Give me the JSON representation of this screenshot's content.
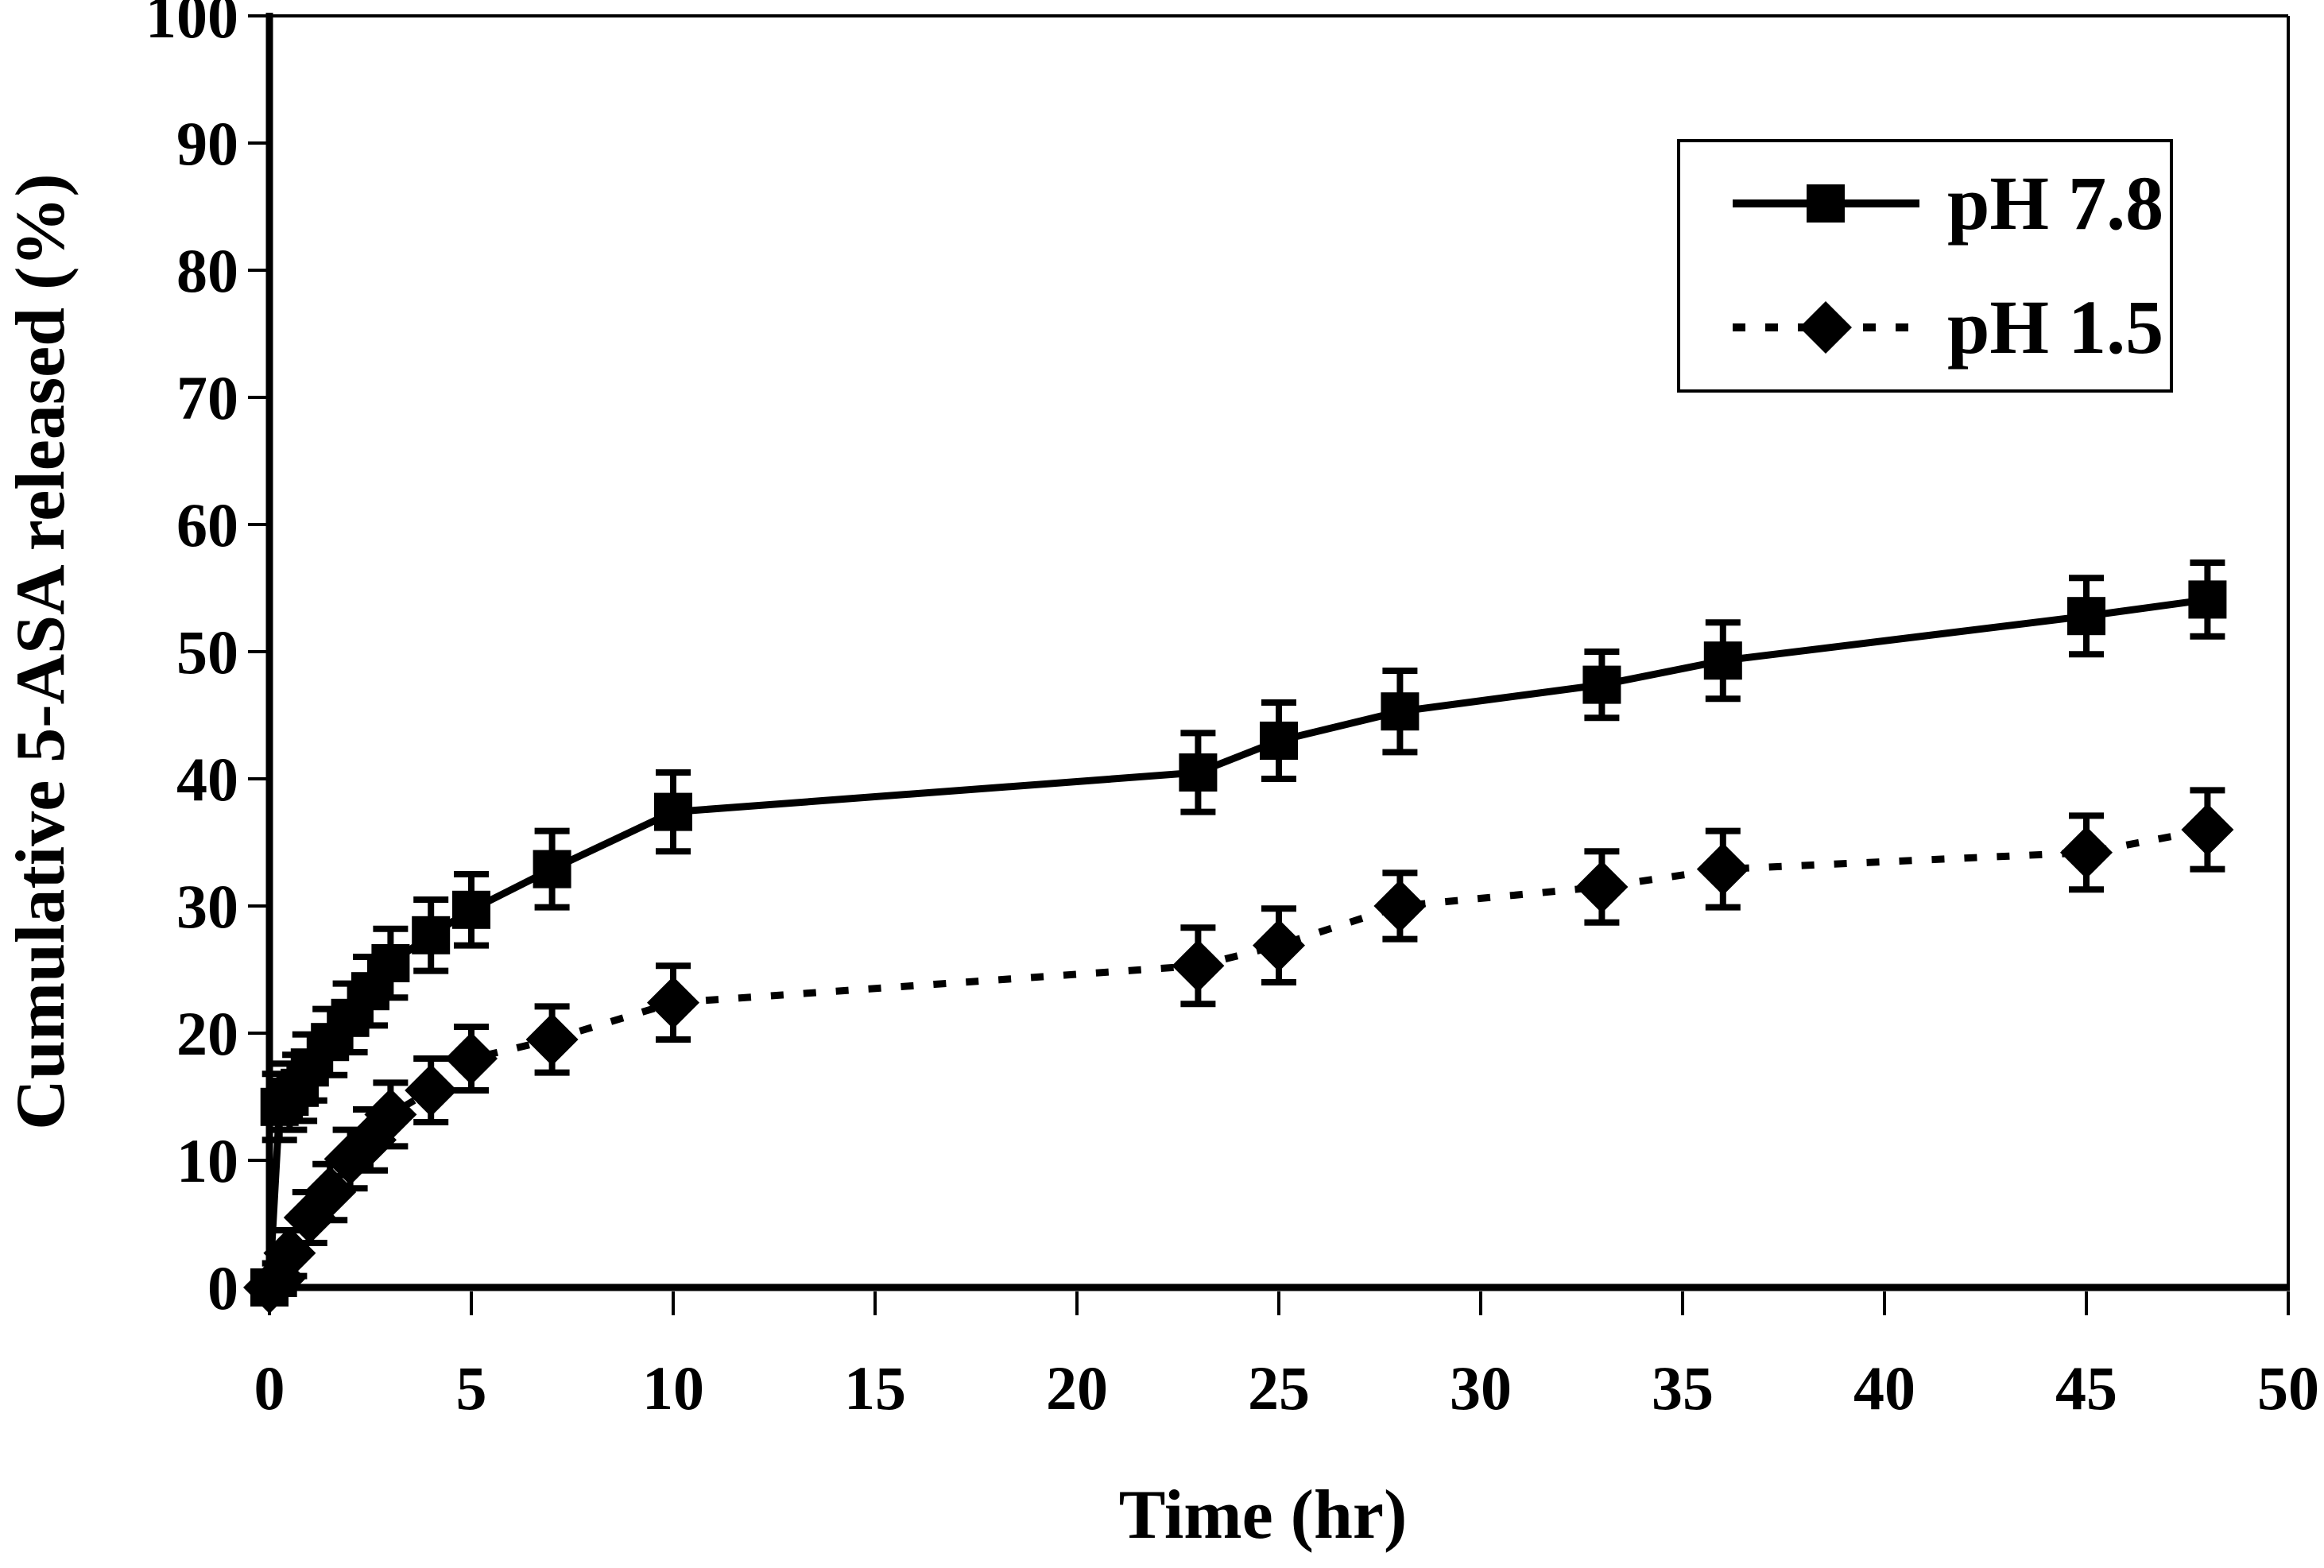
{
  "figure": {
    "background": "#ffffff",
    "ink": "#000000"
  },
  "chart_data": {
    "type": "line",
    "title": "",
    "xlabel": "Time (hr)",
    "ylabel": "Cumulative 5-ASA released (%)",
    "xlim": [
      0,
      50
    ],
    "ylim": [
      0,
      100
    ],
    "xticks": [
      0,
      5,
      10,
      15,
      20,
      25,
      30,
      35,
      40,
      45,
      50
    ],
    "yticks": [
      0,
      10,
      20,
      30,
      40,
      50,
      60,
      70,
      80,
      90,
      100
    ],
    "grid": false,
    "legend_position": "top-right",
    "error_bars": true,
    "series": [
      {
        "name": "pH 7.8",
        "marker": "square",
        "line_style": "solid",
        "color": "#000000",
        "x": [
          0,
          0.25,
          0.5,
          0.75,
          1,
          1.5,
          2,
          2.5,
          3,
          4,
          5,
          7,
          10,
          23,
          25,
          28,
          33,
          36,
          45,
          48
        ],
        "y": [
          0,
          14.2,
          15.0,
          15.7,
          17.3,
          19.3,
          21.2,
          23.3,
          25.5,
          27.7,
          29.7,
          32.9,
          37.4,
          40.5,
          43.0,
          45.3,
          47.4,
          49.3,
          52.8,
          54.1
        ],
        "yerr": [
          1.0,
          2.6,
          2.6,
          2.6,
          2.6,
          2.6,
          2.7,
          2.7,
          2.7,
          2.8,
          2.8,
          3.0,
          3.1,
          3.1,
          3.0,
          3.2,
          2.6,
          3.0,
          3.0,
          2.9
        ]
      },
      {
        "name": "pH 1.5",
        "marker": "diamond",
        "line_style": "dotted",
        "color": "#000000",
        "x": [
          0,
          0.25,
          0.5,
          1,
          1.5,
          2,
          2.5,
          3,
          4,
          5,
          7,
          10,
          23,
          25,
          28,
          33,
          36,
          45,
          48
        ],
        "y": [
          0,
          0.7,
          2.7,
          5.5,
          7.5,
          10.1,
          11.6,
          13.6,
          15.5,
          18.0,
          19.5,
          22.4,
          25.3,
          26.9,
          30.0,
          31.5,
          32.9,
          34.2,
          36.0
        ],
        "yerr": [
          0.8,
          1.2,
          1.8,
          2.0,
          2.2,
          2.3,
          2.4,
          2.5,
          2.5,
          2.5,
          2.6,
          2.9,
          3.0,
          2.9,
          2.6,
          2.8,
          3.0,
          2.9,
          3.1
        ]
      }
    ]
  }
}
